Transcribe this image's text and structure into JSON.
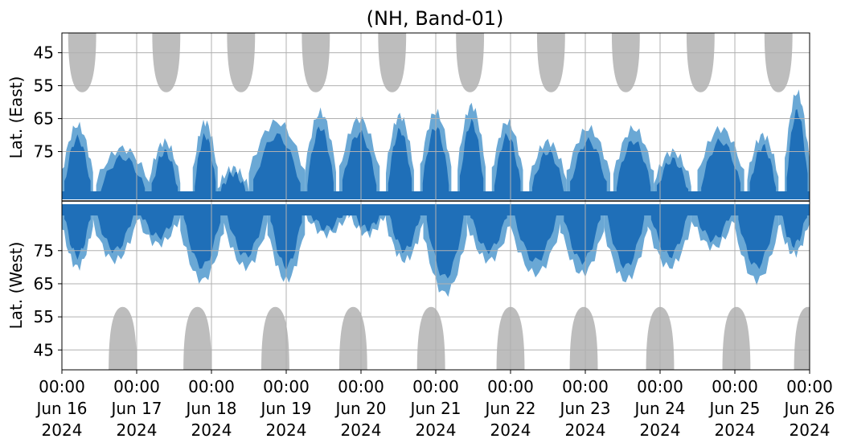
{
  "chart_data": {
    "type": "heatmap",
    "title": "(NH, Band-01)",
    "ylabel_east": "Lat. (East)",
    "ylabel_west": "Lat. (West)",
    "x_ticks": [
      {
        "time": "00:00",
        "date": "Jun 16",
        "year": "2024"
      },
      {
        "time": "00:00",
        "date": "Jun 17",
        "year": "2024"
      },
      {
        "time": "00:00",
        "date": "Jun 18",
        "year": "2024"
      },
      {
        "time": "00:00",
        "date": "Jun 19",
        "year": "2024"
      },
      {
        "time": "00:00",
        "date": "Jun 20",
        "year": "2024"
      },
      {
        "time": "00:00",
        "date": "Jun 21",
        "year": "2024"
      },
      {
        "time": "00:00",
        "date": "Jun 22",
        "year": "2024"
      },
      {
        "time": "00:00",
        "date": "Jun 23",
        "year": "2024"
      },
      {
        "time": "00:00",
        "date": "Jun 24",
        "year": "2024"
      },
      {
        "time": "00:00",
        "date": "Jun 25",
        "year": "2024"
      },
      {
        "time": "00:00",
        "date": "Jun 26",
        "year": "2024"
      }
    ],
    "xlim": [
      "2024-06-16 00:00",
      "2024-06-26 00:00"
    ],
    "y_ticks_east": [
      "45",
      "55",
      "65",
      "75"
    ],
    "y_ticks_west": [
      "75",
      "65",
      "55",
      "45"
    ],
    "ylim_east": [
      39,
      90
    ],
    "ylim_west": [
      90,
      39
    ],
    "grid": true,
    "colors": {
      "dense": "#1f6fb8",
      "sparse": "#5a9fd0",
      "polar_night_mask": "#bdbdbd",
      "grid": "#b0b0b0",
      "divider": "#000000"
    },
    "gray_regions_east": [
      {
        "center": "2024-06-16 06:30",
        "half_width_hours": 4.5,
        "lat_edge": 57
      },
      {
        "center": "2024-06-17 09:30",
        "half_width_hours": 4.5,
        "lat_edge": 57
      },
      {
        "center": "2024-06-18 09:30",
        "half_width_hours": 4.5,
        "lat_edge": 57
      },
      {
        "center": "2024-06-19 09:30",
        "half_width_hours": 4.5,
        "lat_edge": 57
      },
      {
        "center": "2024-06-20 10:00",
        "half_width_hours": 4.5,
        "lat_edge": 57
      },
      {
        "center": "2024-06-21 11:00",
        "half_width_hours": 4.5,
        "lat_edge": 57
      },
      {
        "center": "2024-06-22 13:00",
        "half_width_hours": 4.5,
        "lat_edge": 57
      },
      {
        "center": "2024-06-23 13:00",
        "half_width_hours": 4.5,
        "lat_edge": 57
      },
      {
        "center": "2024-06-24 13:00",
        "half_width_hours": 4.5,
        "lat_edge": 57
      },
      {
        "center": "2024-06-25 14:00",
        "half_width_hours": 4.5,
        "lat_edge": 57
      }
    ],
    "gray_regions_west": [
      {
        "center": "2024-06-16 19:30",
        "half_width_hours": 4.5,
        "lat_edge": 58
      },
      {
        "center": "2024-06-17 19:30",
        "half_width_hours": 4.5,
        "lat_edge": 58
      },
      {
        "center": "2024-06-18 20:30",
        "half_width_hours": 4.5,
        "lat_edge": 58
      },
      {
        "center": "2024-06-19 21:30",
        "half_width_hours": 4.5,
        "lat_edge": 58
      },
      {
        "center": "2024-06-20 22:30",
        "half_width_hours": 4.5,
        "lat_edge": 58
      },
      {
        "center": "2024-06-22 00:00",
        "half_width_hours": 4.5,
        "lat_edge": 58
      },
      {
        "center": "2024-06-22 23:30",
        "half_width_hours": 4.5,
        "lat_edge": 58
      },
      {
        "center": "2024-06-24 00:00",
        "half_width_hours": 4.5,
        "lat_edge": 58
      },
      {
        "center": "2024-06-25 00:30",
        "half_width_hours": 4.5,
        "lat_edge": 58
      },
      {
        "center": "2024-06-25 23:30",
        "half_width_hours": 4.5,
        "lat_edge": 58
      }
    ],
    "activity_east": [
      {
        "start": "2024-06-16 00:00",
        "end": "2024-06-16 10:00",
        "max_lat": 67
      },
      {
        "start": "2024-06-16 11:00",
        "end": "2024-06-17 04:00",
        "max_lat": 74
      },
      {
        "start": "2024-06-17 04:00",
        "end": "2024-06-17 14:00",
        "max_lat": 72
      },
      {
        "start": "2024-06-17 18:00",
        "end": "2024-06-18 02:00",
        "max_lat": 66
      },
      {
        "start": "2024-06-18 02:00",
        "end": "2024-06-18 12:00",
        "max_lat": 80
      },
      {
        "start": "2024-06-18 12:00",
        "end": "2024-06-19 06:00",
        "max_lat": 66
      },
      {
        "start": "2024-06-19 06:00",
        "end": "2024-06-19 16:00",
        "max_lat": 63
      },
      {
        "start": "2024-06-19 17:00",
        "end": "2024-06-20 06:00",
        "max_lat": 65
      },
      {
        "start": "2024-06-20 08:00",
        "end": "2024-06-20 17:00",
        "max_lat": 64
      },
      {
        "start": "2024-06-20 19:00",
        "end": "2024-06-21 05:00",
        "max_lat": 63
      },
      {
        "start": "2024-06-21 07:00",
        "end": "2024-06-21 16:00",
        "max_lat": 61
      },
      {
        "start": "2024-06-21 18:00",
        "end": "2024-06-22 04:00",
        "max_lat": 66
      },
      {
        "start": "2024-06-22 06:00",
        "end": "2024-06-22 18:00",
        "max_lat": 72
      },
      {
        "start": "2024-06-22 18:00",
        "end": "2024-06-23 08:00",
        "max_lat": 68
      },
      {
        "start": "2024-06-23 09:00",
        "end": "2024-06-23 22:00",
        "max_lat": 68
      },
      {
        "start": "2024-06-23 22:00",
        "end": "2024-06-24 10:00",
        "max_lat": 75
      },
      {
        "start": "2024-06-24 12:00",
        "end": "2024-06-25 03:00",
        "max_lat": 68
      },
      {
        "start": "2024-06-25 04:00",
        "end": "2024-06-25 14:00",
        "max_lat": 70
      },
      {
        "start": "2024-06-25 16:00",
        "end": "2024-06-26 00:00",
        "max_lat": 57
      }
    ],
    "activity_west": [
      {
        "start": "2024-06-16 00:00",
        "end": "2024-06-16 10:00",
        "max_lat": 70
      },
      {
        "start": "2024-06-16 10:00",
        "end": "2024-06-17 00:00",
        "max_lat": 72
      },
      {
        "start": "2024-06-17 00:00",
        "end": "2024-06-17 14:00",
        "max_lat": 77
      },
      {
        "start": "2024-06-17 14:00",
        "end": "2024-06-18 04:00",
        "max_lat": 66
      },
      {
        "start": "2024-06-18 04:00",
        "end": "2024-06-18 18:00",
        "max_lat": 70
      },
      {
        "start": "2024-06-18 18:00",
        "end": "2024-06-19 06:00",
        "max_lat": 66
      },
      {
        "start": "2024-06-19 06:00",
        "end": "2024-06-19 20:00",
        "max_lat": 80
      },
      {
        "start": "2024-06-19 20:00",
        "end": "2024-06-20 08:00",
        "max_lat": 80
      },
      {
        "start": "2024-06-20 08:00",
        "end": "2024-06-20 20:00",
        "max_lat": 72
      },
      {
        "start": "2024-06-20 20:00",
        "end": "2024-06-21 10:00",
        "max_lat": 62
      },
      {
        "start": "2024-06-21 10:00",
        "end": "2024-06-22 00:00",
        "max_lat": 72
      },
      {
        "start": "2024-06-22 00:00",
        "end": "2024-06-22 16:00",
        "max_lat": 68
      },
      {
        "start": "2024-06-22 16:00",
        "end": "2024-06-23 06:00",
        "max_lat": 68
      },
      {
        "start": "2024-06-23 06:00",
        "end": "2024-06-23 20:00",
        "max_lat": 66
      },
      {
        "start": "2024-06-23 20:00",
        "end": "2024-06-24 10:00",
        "max_lat": 70
      },
      {
        "start": "2024-06-24 10:00",
        "end": "2024-06-25 00:00",
        "max_lat": 76
      },
      {
        "start": "2024-06-25 00:00",
        "end": "2024-06-25 14:00",
        "max_lat": 66
      },
      {
        "start": "2024-06-25 14:00",
        "end": "2024-06-26 00:00",
        "max_lat": 74
      }
    ]
  }
}
